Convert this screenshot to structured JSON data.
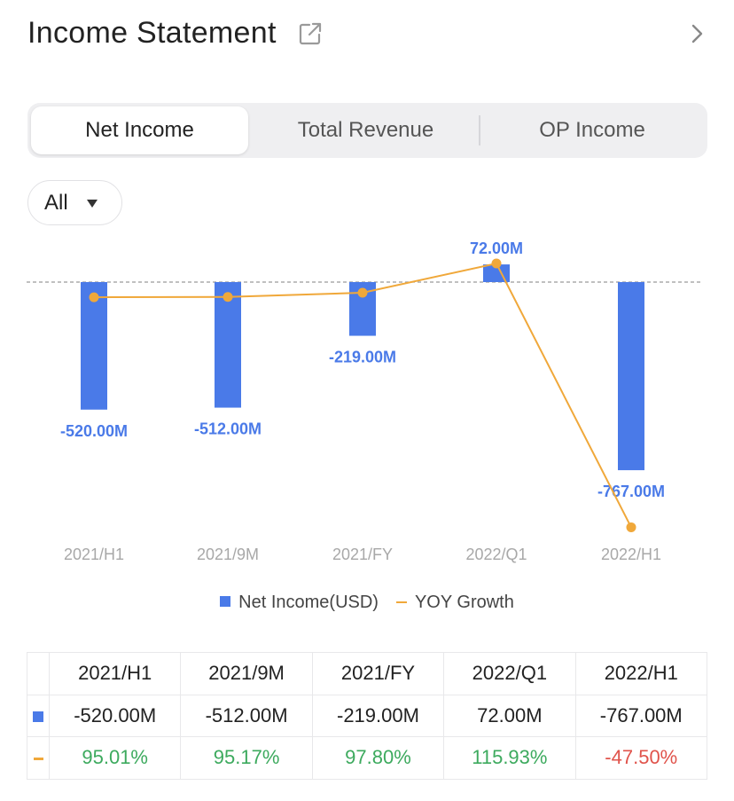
{
  "header": {
    "title": "Income Statement",
    "external_icon": "external-link-icon",
    "chevron_icon": "chevron-right-icon"
  },
  "tabs": [
    {
      "label": "Net Income",
      "active": true
    },
    {
      "label": "Total Revenue",
      "active": false
    },
    {
      "label": "OP Income",
      "active": false
    }
  ],
  "filter": {
    "label": "All",
    "icon": "caret-down-icon"
  },
  "colors": {
    "bar": "#4a7ae8",
    "line": "#f0a83a",
    "positive": "#3daa5e",
    "negative": "#e0534b"
  },
  "chart_data": {
    "type": "bar",
    "categories": [
      "2021/H1",
      "2021/9M",
      "2021/FY",
      "2022/Q1",
      "2022/H1"
    ],
    "series": [
      {
        "name": "Net Income(USD)",
        "type": "bar",
        "values": [
          -520,
          -512,
          -219,
          72,
          -767
        ],
        "labels": [
          "-520.00M",
          "-512.00M",
          "-219.00M",
          "72.00M",
          "-767.00M"
        ]
      },
      {
        "name": "YOY Growth",
        "type": "line",
        "values": [
          95.01,
          95.17,
          97.8,
          115.93,
          -47.5
        ]
      }
    ],
    "zero_line": "dashed",
    "legend": "bottom"
  },
  "legend": {
    "bar_label": "Net Income(USD)",
    "line_label": "YOY Growth"
  },
  "table": {
    "headers": [
      "2021/H1",
      "2021/9M",
      "2021/FY",
      "2022/Q1",
      "2022/H1"
    ],
    "net_income": [
      "-520.00M",
      "-512.00M",
      "-219.00M",
      "72.00M",
      "-767.00M"
    ],
    "yoy_growth": [
      "95.01%",
      "95.17%",
      "97.80%",
      "115.93%",
      "-47.50%"
    ]
  }
}
